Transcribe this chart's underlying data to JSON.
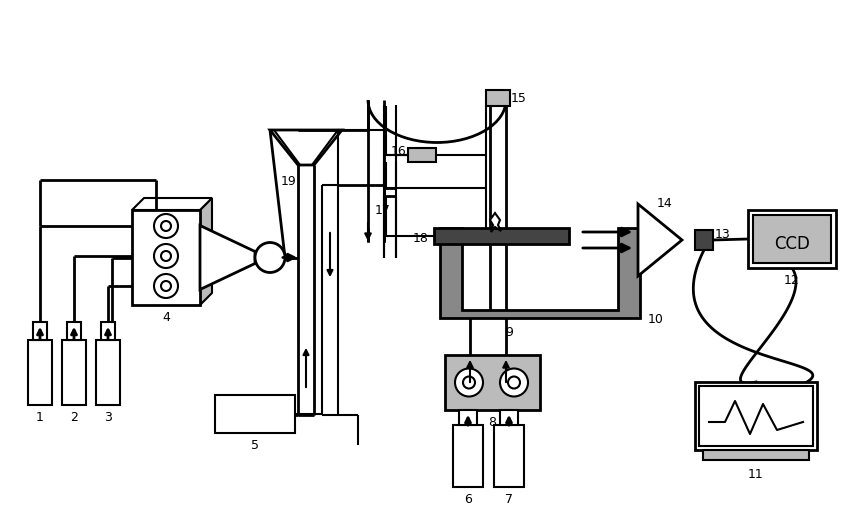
{
  "bg": "#ffffff",
  "lc": "#000000",
  "gc": "#888888",
  "lgc": "#bbbbbb",
  "dgc": "#444444",
  "figsize": [
    8.56,
    5.07
  ],
  "dpi": 100,
  "lw": 1.5,
  "lw2": 2.0,
  "lw3": 2.5
}
